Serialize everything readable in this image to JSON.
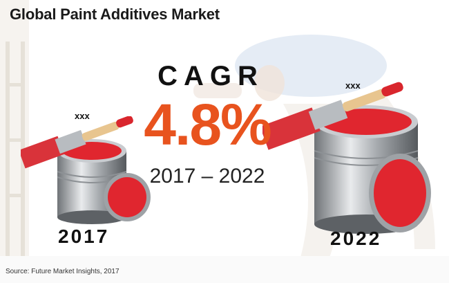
{
  "title": "Global Paint Additives Market",
  "cagr": {
    "label": "CAGR",
    "value": "4.8%",
    "period": "2017 – 2022"
  },
  "chart_data": {
    "type": "bar",
    "categories": [
      "2017",
      "2022"
    ],
    "value_labels": [
      "xxx",
      "xxx"
    ],
    "title": "Global Paint Additives Market",
    "annotation": "CAGR 4.8% 2017 – 2022"
  },
  "source": "Source: Future Market Insights, 2017",
  "colors": {
    "accent": "#e8531e",
    "paint_red": "#e0262f",
    "can_gray": "#a9adb1"
  },
  "icons": [
    "paint-can-icon",
    "paint-brush-icon",
    "paint-lid-icon"
  ]
}
